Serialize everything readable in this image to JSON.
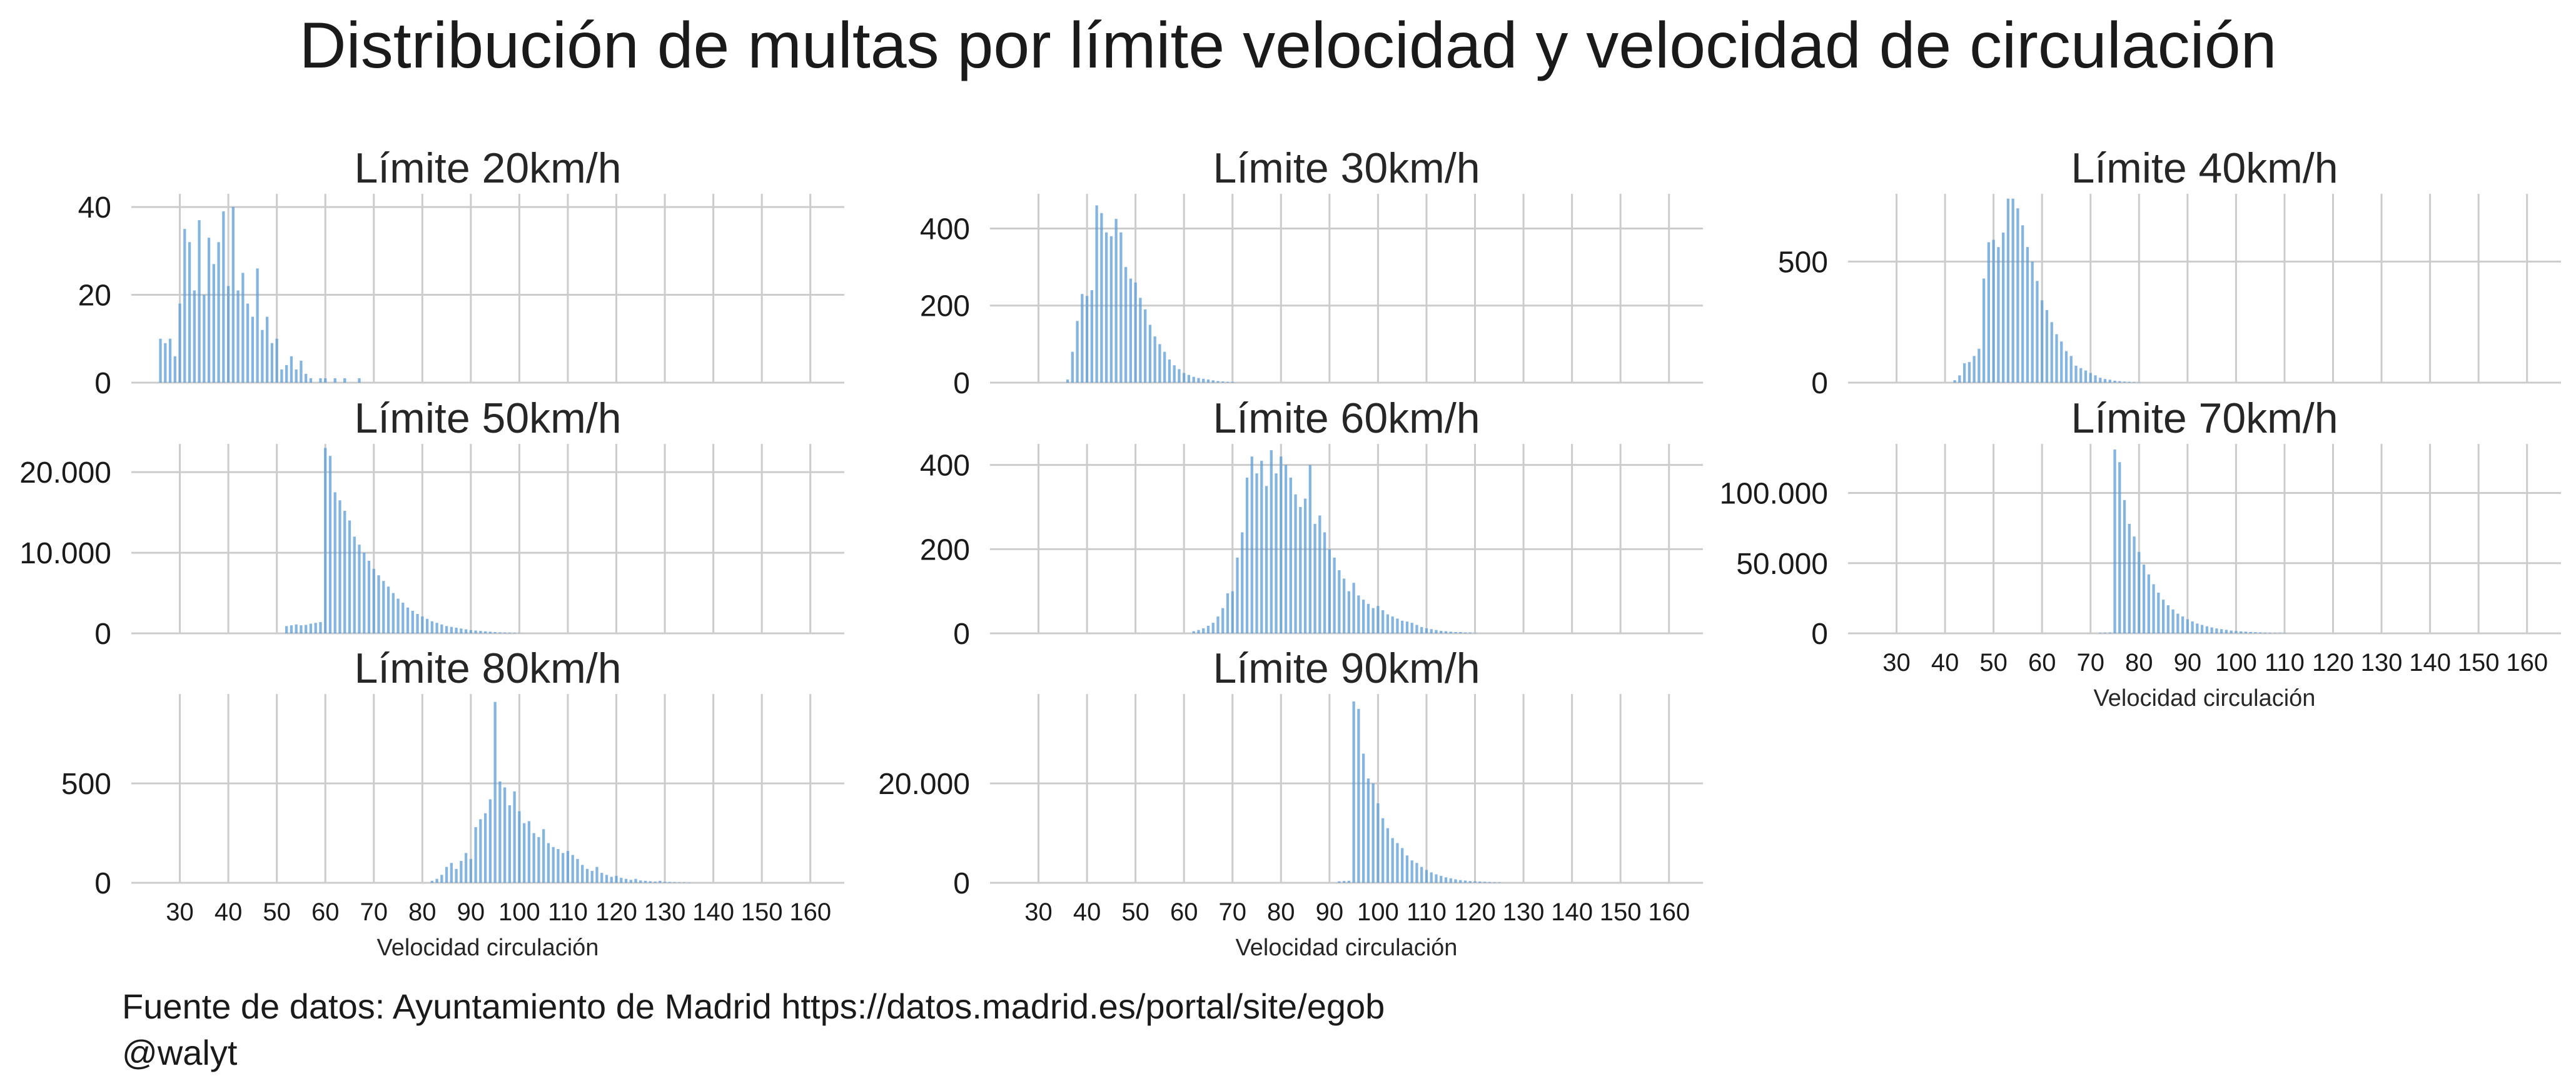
{
  "figure": {
    "suptitle": "Distribución de multas por límite velocidad y velocidad de circulación",
    "source": "Fuente de datos: Ayuntamiento de Madrid https://datos.madrid.es/portal/site/egob",
    "handle": "@walyt",
    "bar_color": "#5b9bd5",
    "grid_color": "#cccccc"
  },
  "chart_data": [
    {
      "type": "bar",
      "title": "Límite 20km/h",
      "xlabel": "",
      "xlim": [
        20,
        167
      ],
      "ylim": [
        0,
        43
      ],
      "yticks": [
        0,
        20,
        40
      ],
      "ytick_labels": [
        "0",
        "20",
        "40"
      ],
      "x": [
        26,
        27,
        28,
        29,
        30,
        31,
        32,
        33,
        34,
        35,
        36,
        37,
        38,
        39,
        40,
        41,
        42,
        43,
        44,
        45,
        46,
        47,
        48,
        49,
        50,
        51,
        52,
        53,
        54,
        55,
        56,
        57,
        59,
        60,
        62,
        64,
        67
      ],
      "values": [
        10,
        9,
        10,
        6,
        18,
        35,
        32,
        21,
        37,
        20,
        33,
        27,
        32,
        39,
        22,
        40,
        21,
        25,
        18,
        15,
        26,
        12,
        15,
        9,
        10,
        3,
        4,
        6,
        3,
        5,
        2,
        1,
        1,
        1,
        1,
        1,
        1
      ]
    },
    {
      "type": "bar",
      "title": "Límite 30km/h",
      "xlabel": "",
      "xlim": [
        20,
        167
      ],
      "ylim": [
        0,
        490
      ],
      "yticks": [
        0,
        200,
        400
      ],
      "ytick_labels": [
        "0",
        "200",
        "400"
      ],
      "x": [
        36,
        37,
        38,
        39,
        40,
        41,
        42,
        43,
        44,
        45,
        46,
        47,
        48,
        49,
        50,
        51,
        52,
        53,
        54,
        55,
        56,
        57,
        58,
        59,
        60,
        61,
        62,
        63,
        64,
        65,
        66,
        67,
        68,
        69,
        70
      ],
      "values": [
        8,
        80,
        160,
        230,
        225,
        240,
        460,
        440,
        390,
        380,
        425,
        390,
        300,
        270,
        260,
        220,
        190,
        150,
        120,
        100,
        80,
        60,
        45,
        35,
        25,
        20,
        15,
        12,
        10,
        8,
        6,
        4,
        3,
        2,
        2
      ]
    },
    {
      "type": "bar",
      "title": "Límite 40km/h",
      "xlabel": "",
      "xlim": [
        20,
        167
      ],
      "ylim": [
        0,
        780
      ],
      "yticks": [
        0,
        500
      ],
      "ytick_labels": [
        "0",
        "500"
      ],
      "x": [
        42,
        43,
        44,
        45,
        46,
        47,
        48,
        49,
        50,
        51,
        52,
        53,
        54,
        55,
        56,
        57,
        58,
        59,
        60,
        61,
        62,
        63,
        64,
        65,
        66,
        67,
        68,
        69,
        70,
        71,
        72,
        73,
        74,
        75,
        76,
        77,
        78,
        79,
        80
      ],
      "values": [
        10,
        30,
        80,
        85,
        110,
        140,
        430,
        580,
        590,
        560,
        620,
        760,
        760,
        720,
        650,
        560,
        500,
        420,
        340,
        300,
        250,
        200,
        170,
        130,
        110,
        70,
        60,
        50,
        40,
        30,
        20,
        15,
        12,
        8,
        6,
        4,
        3,
        2,
        1
      ]
    },
    {
      "type": "bar",
      "title": "Límite 50km/h",
      "xlabel": "",
      "xlim": [
        20,
        167
      ],
      "ylim": [
        0,
        23500
      ],
      "yticks": [
        0,
        10000,
        20000
      ],
      "ytick_labels": [
        "0",
        "10.000",
        "20.000"
      ],
      "x": [
        52,
        53,
        54,
        55,
        56,
        57,
        58,
        59,
        60,
        61,
        62,
        63,
        64,
        65,
        66,
        67,
        68,
        69,
        70,
        71,
        72,
        73,
        74,
        75,
        76,
        77,
        78,
        79,
        80,
        81,
        82,
        83,
        84,
        85,
        86,
        87,
        88,
        89,
        90,
        91,
        92,
        93,
        94,
        95,
        96,
        97,
        98,
        99,
        100
      ],
      "values": [
        900,
        1000,
        1100,
        1000,
        1050,
        1200,
        1300,
        1400,
        23000,
        22000,
        17500,
        16500,
        15200,
        14000,
        12000,
        11000,
        10000,
        9000,
        8000,
        7200,
        6500,
        5800,
        5000,
        4300,
        3800,
        3200,
        2800,
        2400,
        2100,
        1800,
        1500,
        1300,
        1100,
        900,
        800,
        700,
        600,
        500,
        400,
        350,
        300,
        250,
        200,
        150,
        120,
        100,
        80,
        60,
        40
      ]
    },
    {
      "type": "bar",
      "title": "Límite 60km/h",
      "xlabel": "",
      "xlim": [
        20,
        167
      ],
      "ylim": [
        0,
        450
      ],
      "yticks": [
        0,
        200,
        400
      ],
      "ytick_labels": [
        "0",
        "200",
        "400"
      ],
      "x": [
        62,
        63,
        64,
        65,
        66,
        67,
        68,
        69,
        70,
        71,
        72,
        73,
        74,
        75,
        76,
        77,
        78,
        79,
        80,
        81,
        82,
        83,
        84,
        85,
        86,
        87,
        88,
        89,
        90,
        91,
        92,
        93,
        94,
        95,
        96,
        97,
        98,
        99,
        100,
        101,
        102,
        103,
        104,
        105,
        106,
        107,
        108,
        109,
        110,
        111,
        112,
        113,
        114,
        115,
        116,
        117,
        118,
        119,
        120
      ],
      "values": [
        5,
        8,
        12,
        18,
        25,
        40,
        60,
        95,
        100,
        180,
        240,
        370,
        420,
        380,
        410,
        350,
        435,
        380,
        420,
        400,
        370,
        330,
        300,
        320,
        400,
        260,
        280,
        240,
        200,
        180,
        150,
        130,
        100,
        120,
        90,
        80,
        70,
        60,
        65,
        55,
        45,
        40,
        35,
        30,
        28,
        25,
        20,
        15,
        12,
        10,
        8,
        6,
        5,
        4,
        3,
        3,
        2,
        2,
        1
      ]
    },
    {
      "type": "bar",
      "title": "Límite 70km/h",
      "xlabel": "Velocidad circulación",
      "xlim": [
        20,
        167
      ],
      "ylim": [
        0,
        135000
      ],
      "yticks": [
        0,
        50000,
        100000
      ],
      "ytick_labels": [
        "0",
        "50.000",
        "100.000"
      ],
      "x": [
        72,
        73,
        74,
        75,
        76,
        77,
        78,
        79,
        80,
        81,
        82,
        83,
        84,
        85,
        86,
        87,
        88,
        89,
        90,
        91,
        92,
        93,
        94,
        95,
        96,
        97,
        98,
        99,
        100,
        101,
        102,
        103,
        104,
        105,
        106,
        107,
        108,
        109,
        110
      ],
      "values": [
        400,
        500,
        600,
        131000,
        122000,
        95000,
        78000,
        69000,
        58000,
        49000,
        42000,
        35000,
        29000,
        24000,
        20000,
        17000,
        14000,
        12000,
        10000,
        8500,
        7000,
        6000,
        5000,
        4200,
        3500,
        3000,
        2500,
        2000,
        1700,
        1400,
        1200,
        1000,
        800,
        650,
        500,
        400,
        300,
        250,
        200
      ]
    },
    {
      "type": "bar",
      "title": "Límite 80km/h",
      "xlabel": "Velocidad circulación",
      "xlim": [
        20,
        167
      ],
      "ylim": [
        0,
        950
      ],
      "yticks": [
        0,
        500
      ],
      "ytick_labels": [
        "0",
        "500"
      ],
      "x": [
        82,
        83,
        84,
        85,
        86,
        87,
        88,
        89,
        90,
        91,
        92,
        93,
        94,
        95,
        96,
        97,
        98,
        99,
        100,
        101,
        102,
        103,
        104,
        105,
        106,
        107,
        108,
        109,
        110,
        111,
        112,
        113,
        114,
        115,
        116,
        117,
        118,
        119,
        120,
        121,
        122,
        123,
        124,
        125,
        126,
        127,
        128,
        129,
        130,
        131,
        132,
        133,
        134,
        135
      ],
      "values": [
        10,
        20,
        40,
        80,
        100,
        70,
        110,
        150,
        120,
        280,
        320,
        350,
        420,
        910,
        510,
        480,
        390,
        460,
        360,
        300,
        310,
        250,
        230,
        270,
        200,
        180,
        170,
        150,
        160,
        140,
        120,
        90,
        70,
        60,
        80,
        50,
        40,
        30,
        35,
        25,
        20,
        15,
        20,
        12,
        10,
        8,
        6,
        10,
        5,
        4,
        3,
        2,
        2,
        1
      ]
    },
    {
      "type": "bar",
      "title": "Límite 90km/h",
      "xlabel": "Velocidad circulación",
      "xlim": [
        20,
        167
      ],
      "ylim": [
        0,
        38000
      ],
      "yticks": [
        0,
        20000
      ],
      "ytick_labels": [
        "0",
        "20.000"
      ],
      "x": [
        92,
        93,
        94,
        95,
        96,
        97,
        98,
        99,
        100,
        101,
        102,
        103,
        104,
        105,
        106,
        107,
        108,
        109,
        110,
        111,
        112,
        113,
        114,
        115,
        116,
        117,
        118,
        119,
        120,
        121,
        122,
        123,
        124,
        125
      ],
      "values": [
        300,
        350,
        400,
        36500,
        35000,
        26000,
        21000,
        20000,
        16000,
        13000,
        11000,
        9000,
        8000,
        7000,
        5500,
        4500,
        4000,
        3200,
        2600,
        2100,
        1700,
        1400,
        1100,
        900,
        700,
        550,
        450,
        350,
        300,
        250,
        200,
        150,
        100,
        80
      ]
    }
  ],
  "axes": {
    "xticks": [
      30,
      40,
      50,
      60,
      70,
      80,
      90,
      100,
      110,
      120,
      130,
      140,
      150,
      160
    ],
    "xtick_labels": [
      "30",
      "40",
      "50",
      "60",
      "70",
      "80",
      "90",
      "100",
      "110",
      "120",
      "130",
      "140",
      "150",
      "160"
    ]
  }
}
